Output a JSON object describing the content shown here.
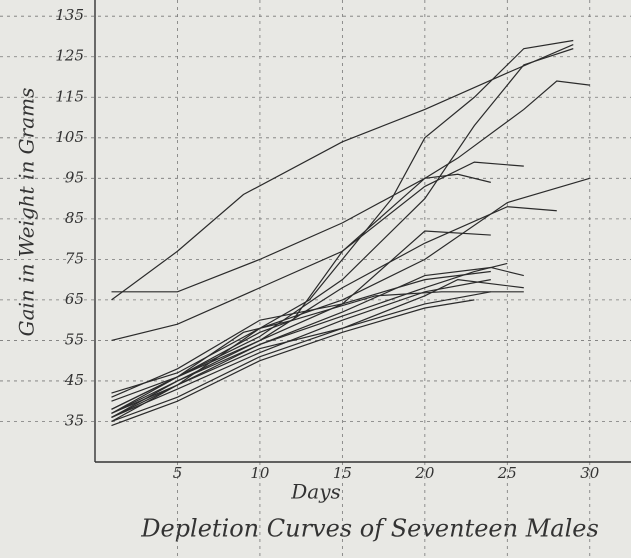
{
  "chart_data": {
    "type": "line",
    "title": "Depletion Curves of Seventeen Males",
    "x_label": "Days",
    "y_label": "Gain in Weight in Grams",
    "xlim": [
      0,
      32.5
    ],
    "ylim": [
      25,
      139
    ],
    "xticks": [
      5,
      10,
      15,
      20,
      25,
      30
    ],
    "yticks": [
      35,
      45,
      55,
      65,
      75,
      85,
      95,
      105,
      115,
      125,
      135
    ],
    "grid": true,
    "color": "#2b2b2b",
    "series": [
      {
        "x": [
          1,
          5,
          9,
          15,
          20,
          25,
          29
        ],
        "values": [
          65,
          77,
          91,
          104,
          112,
          121,
          128
        ]
      },
      {
        "x": [
          1,
          5,
          10,
          15,
          20,
          22,
          24
        ],
        "values": [
          67,
          67,
          75,
          84,
          95,
          96,
          94
        ]
      },
      {
        "x": [
          1,
          5,
          10,
          15,
          20,
          23,
          26
        ],
        "values": [
          55,
          59,
          68,
          77,
          93,
          99,
          98
        ]
      },
      {
        "x": [
          1,
          5,
          10,
          13,
          15,
          18,
          20,
          23,
          26,
          29
        ],
        "values": [
          42,
          47,
          58,
          65,
          75,
          90,
          105,
          115,
          127,
          129
        ]
      },
      {
        "x": [
          1,
          5,
          10,
          12,
          15,
          20,
          22,
          26,
          28,
          30
        ],
        "values": [
          40,
          46,
          57,
          60,
          77,
          95,
          100,
          112,
          119,
          118
        ]
      },
      {
        "x": [
          1,
          5,
          10,
          15,
          20,
          23,
          26,
          29
        ],
        "values": [
          38,
          46,
          56,
          70,
          90,
          108,
          123,
          127
        ]
      },
      {
        "x": [
          1,
          5,
          10,
          15,
          20,
          25,
          28
        ],
        "values": [
          37,
          45,
          55,
          68,
          79,
          88,
          87
        ]
      },
      {
        "x": [
          1,
          5,
          10,
          15,
          20,
          25,
          30
        ],
        "values": [
          36,
          44,
          58,
          65,
          75,
          89,
          95
        ]
      },
      {
        "x": [
          1,
          5,
          10,
          15,
          20,
          24
        ],
        "values": [
          38,
          46,
          55,
          64,
          82,
          81
        ]
      },
      {
        "x": [
          1,
          5,
          10,
          15,
          20,
          24,
          26
        ],
        "values": [
          37,
          44,
          54,
          62,
          71,
          73,
          71
        ]
      },
      {
        "x": [
          1,
          5,
          10,
          15,
          20,
          24
        ],
        "values": [
          36,
          43,
          52,
          60,
          67,
          70
        ]
      },
      {
        "x": [
          1,
          5,
          10,
          15,
          20,
          22,
          26
        ],
        "values": [
          35,
          41,
          51,
          58,
          66,
          70,
          68
        ]
      },
      {
        "x": [
          1,
          5,
          10,
          15,
          20,
          24
        ],
        "values": [
          35,
          44,
          53,
          58,
          64,
          67
        ]
      },
      {
        "x": [
          1,
          5,
          10,
          15,
          20,
          23,
          25
        ],
        "values": [
          36,
          45,
          54,
          61,
          68,
          72,
          74
        ]
      },
      {
        "x": [
          1,
          5,
          10,
          15,
          20,
          23
        ],
        "values": [
          34,
          40,
          50,
          57,
          63,
          65
        ]
      },
      {
        "x": [
          1,
          5,
          9,
          12,
          17,
          21,
          26
        ],
        "values": [
          37,
          46,
          57,
          60,
          66,
          67,
          67
        ]
      },
      {
        "x": [
          1,
          5,
          10,
          15,
          20,
          24
        ],
        "values": [
          41,
          48,
          60,
          64,
          70,
          72
        ]
      }
    ]
  }
}
